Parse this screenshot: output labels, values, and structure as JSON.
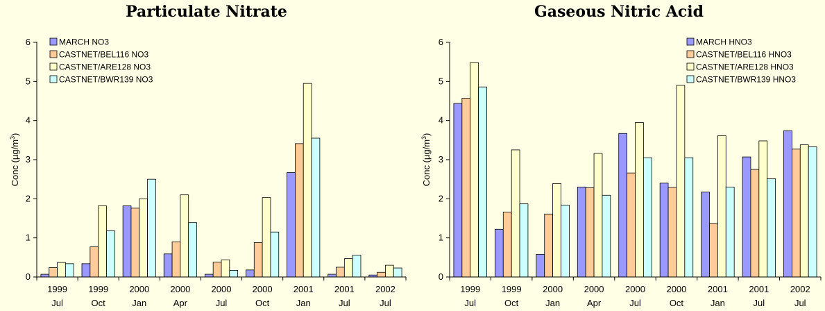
{
  "chart_data": [
    {
      "type": "bar",
      "title": "Particulate Nitrate",
      "ylabel": "Conc (µg/m",
      "ylabel_sup": "3",
      "ylabel_end": ")",
      "ylim": [
        0,
        6
      ],
      "yticks": [
        "0",
        "1",
        "2",
        "3",
        "4",
        "5",
        "6"
      ],
      "legend_position": "top-left",
      "categories": [
        [
          "1999",
          "Jul"
        ],
        [
          "1999",
          "Oct"
        ],
        [
          "2000",
          "Jan"
        ],
        [
          "2000",
          "Apr"
        ],
        [
          "2000",
          "Jul"
        ],
        [
          "2000",
          "Oct"
        ],
        [
          "2001",
          "Jan"
        ],
        [
          "2001",
          "Jul"
        ],
        [
          "2002",
          "Jul"
        ]
      ],
      "series": [
        {
          "name": "MARCH NO3",
          "color": "#9999FF",
          "values": [
            0.07,
            0.34,
            1.82,
            0.59,
            0.07,
            0.18,
            2.67,
            0.07,
            0.05
          ]
        },
        {
          "name": "CASTNET/BEL116 NO3",
          "color": "#FFCC99",
          "values": [
            0.24,
            0.77,
            1.76,
            0.9,
            0.38,
            0.88,
            3.41,
            0.25,
            0.12
          ]
        },
        {
          "name": "CASTNET/ARE128 NO3",
          "color": "#FFFFCC",
          "values": [
            0.37,
            1.82,
            2.0,
            2.1,
            0.44,
            2.03,
            4.95,
            0.47,
            0.3
          ]
        },
        {
          "name": "CASTNET/BWR139 NO3",
          "color": "#CCFFFF",
          "values": [
            0.34,
            1.18,
            2.5,
            1.39,
            0.17,
            1.15,
            3.55,
            0.56,
            0.23
          ]
        }
      ]
    },
    {
      "type": "bar",
      "title": "Gaseous Nitric Acid",
      "ylabel": "Conc (µg/m",
      "ylabel_sup": "3",
      "ylabel_end": ")",
      "ylim": [
        0,
        6
      ],
      "yticks": [
        "0",
        "1",
        "2",
        "3",
        "4",
        "5",
        "6"
      ],
      "legend_position": "top-right",
      "categories": [
        [
          "1999",
          "Jul"
        ],
        [
          "1999",
          "Oct"
        ],
        [
          "2000",
          "Jan"
        ],
        [
          "2000",
          "Apr"
        ],
        [
          "2000",
          "Jul"
        ],
        [
          "2000",
          "Oct"
        ],
        [
          "2001",
          "Jan"
        ],
        [
          "2001",
          "Jul"
        ],
        [
          "2002",
          "Jul"
        ]
      ],
      "series": [
        {
          "name": "MARCH HNO3",
          "color": "#9999FF",
          "values": [
            4.44,
            1.22,
            0.58,
            2.3,
            3.67,
            2.4,
            2.17,
            3.07,
            3.74
          ]
        },
        {
          "name": "CASTNET/BEL116 HNO3",
          "color": "#FFCC99",
          "values": [
            4.57,
            1.66,
            1.61,
            2.28,
            2.66,
            2.29,
            1.37,
            2.75,
            3.27
          ]
        },
        {
          "name": "CASTNET/ARE128 HNO3",
          "color": "#FFFFCC",
          "values": [
            5.48,
            3.25,
            2.39,
            3.16,
            3.95,
            4.9,
            3.61,
            3.48,
            3.38
          ]
        },
        {
          "name": "CASTNET/BWR139 HNO3",
          "color": "#CCFFFF",
          "values": [
            4.86,
            1.87,
            1.84,
            2.09,
            3.05,
            3.05,
            2.3,
            2.51,
            3.33
          ]
        }
      ]
    }
  ]
}
